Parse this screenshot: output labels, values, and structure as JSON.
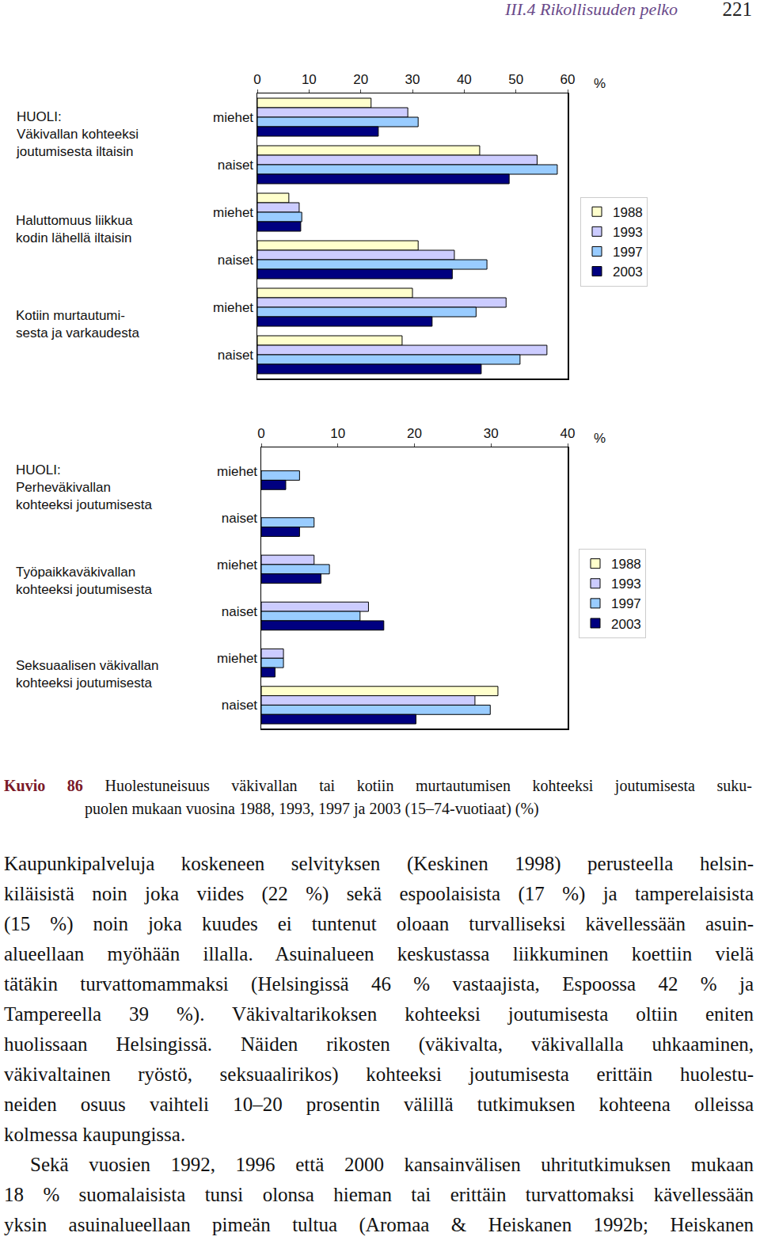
{
  "header": {
    "section": "III.4  Rikollisuuden pelko",
    "page": "221"
  },
  "chart_data": [
    {
      "type": "bar",
      "orientation": "horizontal",
      "group_labels": [
        [
          "HUOLI:",
          "Väkivallan kohteeksi",
          "joutumisesta iltaisin"
        ],
        [
          "Haluttomuus liikkua",
          "kodin lähellä iltaisin"
        ],
        [
          "Kotiin murtautumi-",
          "sesta ja varkaudesta"
        ]
      ],
      "categories": [
        "miehet",
        "naiset",
        "miehet",
        "naiset",
        "miehet",
        "naiset"
      ],
      "series": [
        {
          "name": "1988",
          "color": "#ffffcc",
          "values": [
            22.0,
            43.0,
            6.1,
            31.1,
            30.0,
            28.0
          ]
        },
        {
          "name": "1993",
          "color": "#ccccff",
          "values": [
            29.1,
            54.1,
            8.1,
            38.1,
            48.1,
            56.0
          ]
        },
        {
          "name": "1997",
          "color": "#99ccff",
          "values": [
            31.1,
            58.0,
            8.6,
            44.4,
            42.3,
            50.8
          ]
        },
        {
          "name": "2003",
          "color": "#000080",
          "values": [
            23.4,
            48.7,
            8.4,
            37.7,
            33.8,
            43.3
          ]
        }
      ],
      "xlabel": "%",
      "xlim": [
        0,
        60
      ],
      "xticks": [
        0,
        10,
        20,
        30,
        40,
        50,
        60
      ],
      "grid": false,
      "legend": "right"
    },
    {
      "type": "bar",
      "orientation": "horizontal",
      "group_labels": [
        [
          "HUOLI:",
          "Perheväkivallan",
          "kohteeksi joutumisesta"
        ],
        [
          "Työpaikkaväkivallan",
          "kohteeksi joutumisesta"
        ],
        [
          "Seksuaalisen väkivallan",
          "kohteeksi joutumisesta"
        ]
      ],
      "categories": [
        "miehet",
        "naiset",
        "miehet",
        "naiset",
        "miehet",
        "naiset"
      ],
      "series": [
        {
          "name": "1988",
          "color": "#ffffcc",
          "values": [
            null,
            null,
            null,
            null,
            null,
            30.9
          ]
        },
        {
          "name": "1993",
          "color": "#ccccff",
          "values": [
            null,
            null,
            6.9,
            14.0,
            2.9,
            27.9
          ]
        },
        {
          "name": "1997",
          "color": "#99ccff",
          "values": [
            5.0,
            6.9,
            8.9,
            12.9,
            2.9,
            29.9
          ]
        },
        {
          "name": "2003",
          "color": "#000080",
          "values": [
            3.2,
            5.0,
            7.8,
            16.0,
            1.8,
            20.2
          ]
        }
      ],
      "xlabel": "%",
      "xlim": [
        0,
        40
      ],
      "xticks": [
        0,
        10,
        20,
        30,
        40
      ],
      "grid": false,
      "legend": "right"
    }
  ],
  "caption": {
    "label": "Kuvio 86",
    "lines": [
      "Huolestuneisuus väkivallan tai kotiin murtautumisen kohteeksi joutumisesta suku-",
      "puolen mukaan vuosina 1988, 1993, 1997 ja 2003 (15–74-vuotiaat) (%)"
    ]
  },
  "paragraphs": [
    [
      "Kaupunkipalveluja koskeneen selvityksen (Keskinen 1998) perusteella helsin-",
      "kiläisistä noin joka viides (22 %) sekä espoolaisista (17 %) ja tamperelaisista",
      "(15 %) noin joka kuudes ei tuntenut oloaan turvalliseksi kävellessään asuin-",
      "alueellaan myöhään illalla. Asuinalueen keskustassa liikkuminen koettiin vielä",
      "tätäkin turvattomammaksi (Helsingissä 46 % vastaajista, Espoossa 42 % ja",
      "Tampereella 39 %). Väkivaltarikoksen kohteeksi joutumisesta oltiin eniten",
      "huolissaan Helsingissä. Näiden rikosten (väkivalta, väkivallalla uhkaaminen,",
      "väkivaltainen ryöstö, seksuaalirikos) kohteeksi joutumisesta erittäin huolestu-",
      "neiden osuus vaihteli 10–20 prosentin välillä tutkimuksen kohteena olleissa",
      "kolmessa kaupungissa."
    ],
    [
      "Sekä vuosien 1992, 1996 että 2000 kansainvälisen uhritutkimuksen mukaan",
      "18 % suomalaisista tunsi olonsa hieman tai erittäin turvattomaksi kävellessään",
      "yksin asuinalueellaan pimeän tultua (Aromaa & Heiskanen 1992b; Heiskanen"
    ]
  ]
}
